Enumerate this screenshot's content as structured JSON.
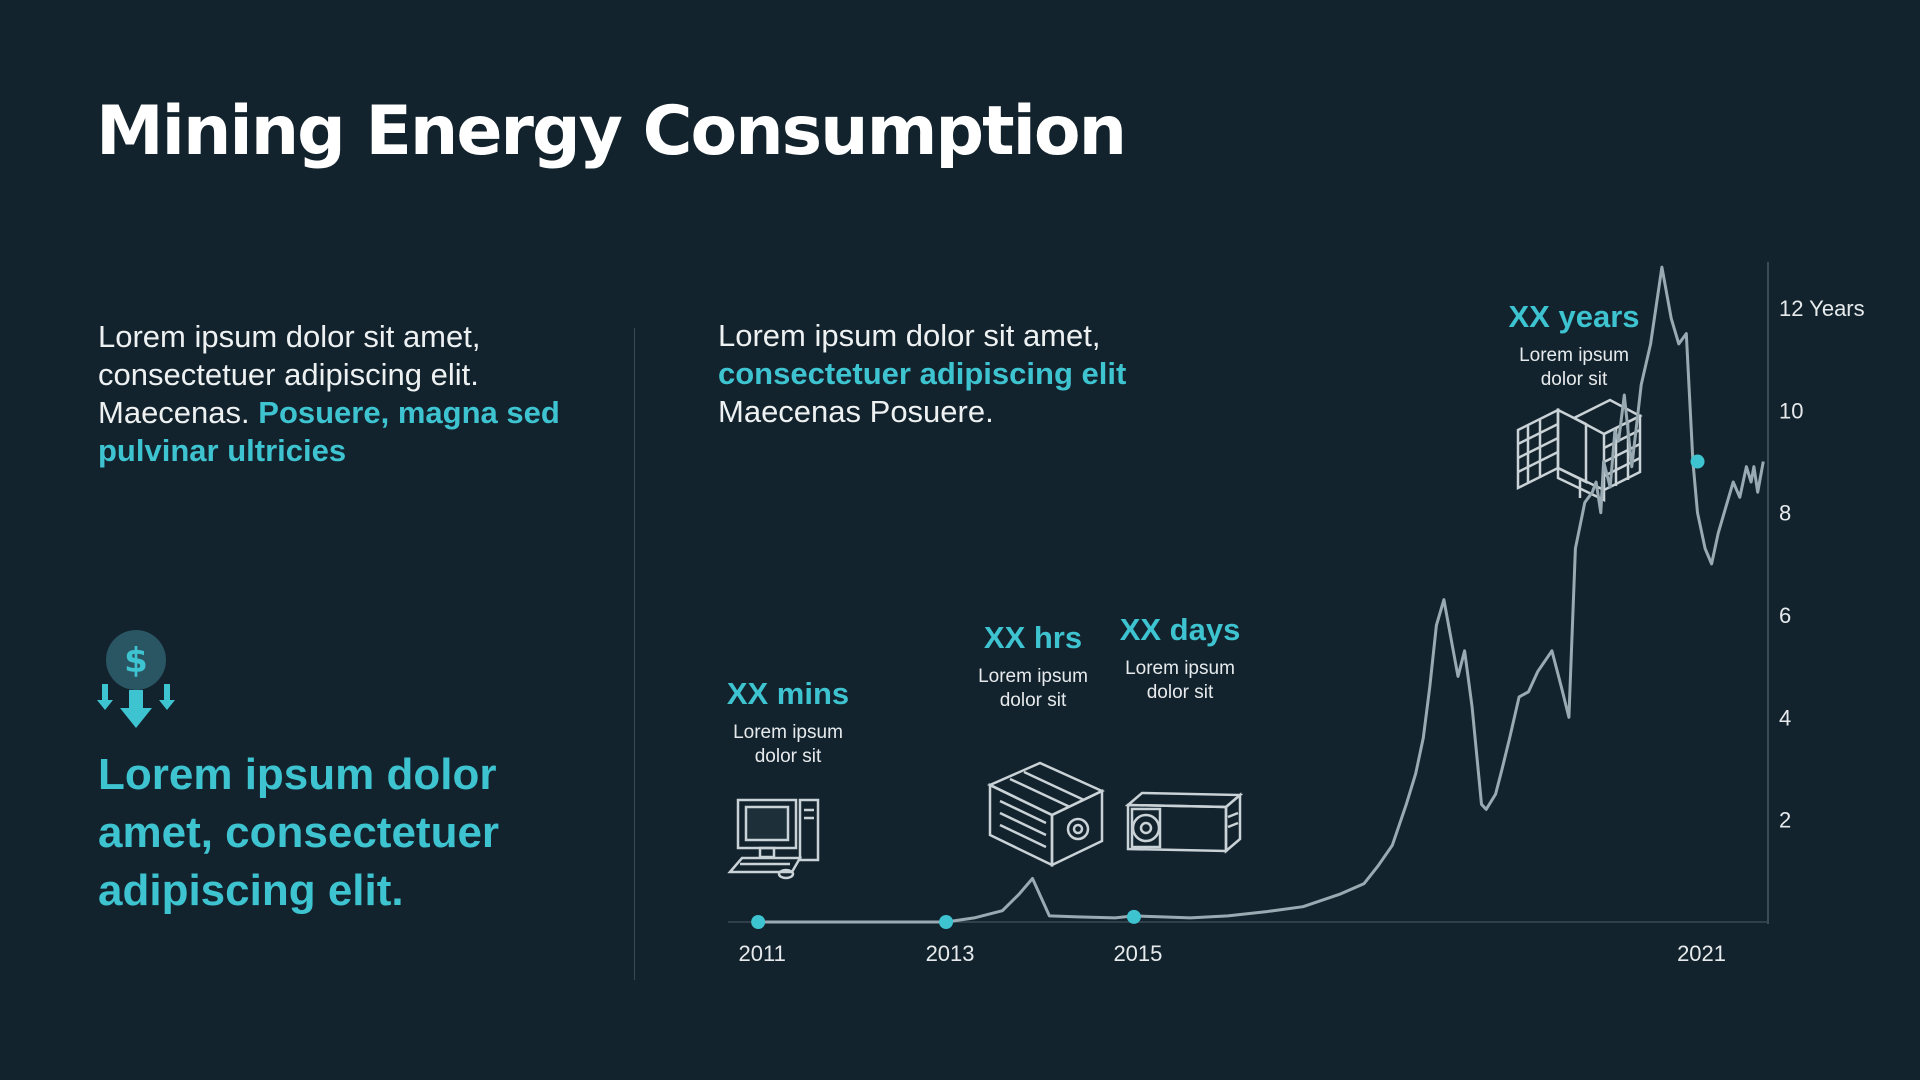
{
  "title": "Mining Energy Consumption",
  "left_text": {
    "plain": "Lorem ipsum dolor sit amet, consectetuer adipiscing elit. Maecenas. ",
    "accent": "Posuere, magna sed pulvinar ultricies"
  },
  "big_statement": "Lorem ipsum dolor amet, consectetuer adipiscing elit.",
  "middle_text": {
    "line1": "Lorem ipsum dolor sit amet,",
    "accent": "consectetuer adipiscing elit",
    "line3": "Maecenas Posuere."
  },
  "icons": {
    "money": "dollar-down-arrows-icon",
    "desktop": "desktop-computer-icon",
    "gpu_rig": "gpu-mining-rig-icon",
    "asic": "asic-miner-icon",
    "farm": "mining-farm-icon"
  },
  "colors": {
    "background": "#13232d",
    "accent": "#3ec3d0",
    "line": "#9aaab2",
    "text": "#f2f4f5"
  },
  "chart_data": {
    "type": "line",
    "title": "",
    "xlabel": "",
    "ylabel": "",
    "x_tick_labels": [
      "2011",
      "2013",
      "2015",
      "2021"
    ],
    "x_ticks": [
      2011,
      2013,
      2015,
      2021
    ],
    "xlim": [
      2010.7,
      2021.75
    ],
    "y_tick_labels": [
      "2",
      "4",
      "6",
      "8",
      "10",
      "12 Years"
    ],
    "y_ticks": [
      2,
      4,
      6,
      8,
      10,
      12
    ],
    "ylim": [
      0,
      12.9
    ],
    "grid": false,
    "series": [
      {
        "x": [
          2011.0,
          2011.5,
          2012.0,
          2012.5,
          2013.0,
          2013.3,
          2013.6,
          2013.78,
          2013.92,
          2014.1,
          2014.4,
          2014.8,
          2015.0,
          2015.3,
          2015.6,
          2016.0,
          2016.4,
          2016.8,
          2017.2,
          2017.45,
          2017.6,
          2017.75,
          2017.9,
          2018.0,
          2018.08,
          2018.15,
          2018.22,
          2018.3,
          2018.38,
          2018.45,
          2018.52,
          2018.6,
          2018.7,
          2018.75,
          2018.85,
          2018.92,
          2019.0,
          2019.1,
          2019.2,
          2019.3,
          2019.45,
          2019.55,
          2019.63,
          2019.7,
          2019.8,
          2019.88,
          2019.92,
          2019.97,
          2020.0,
          2020.07,
          2020.12,
          2020.16,
          2020.22,
          2020.3,
          2020.4,
          2020.5,
          2020.62,
          2020.72,
          2020.8,
          2020.88,
          2020.95,
          2021.0,
          2021.08,
          2021.15,
          2021.22,
          2021.3,
          2021.38,
          2021.45,
          2021.52,
          2021.57,
          2021.6,
          2021.64,
          2021.68,
          2021.7
        ],
        "y": [
          0.0,
          0.0,
          0.0,
          0.0,
          0.0,
          0.08,
          0.22,
          0.55,
          0.85,
          0.12,
          0.1,
          0.08,
          0.12,
          0.1,
          0.08,
          0.12,
          0.2,
          0.3,
          0.55,
          0.75,
          1.1,
          1.5,
          2.3,
          2.9,
          3.6,
          4.6,
          5.8,
          6.3,
          5.5,
          4.8,
          5.3,
          4.2,
          2.3,
          2.2,
          2.5,
          3.0,
          3.6,
          4.4,
          4.5,
          4.9,
          5.3,
          4.6,
          4.0,
          7.3,
          8.2,
          8.4,
          8.6,
          8.0,
          9.0,
          8.5,
          9.6,
          9.4,
          10.3,
          8.9,
          10.5,
          11.3,
          12.8,
          11.8,
          11.3,
          11.5,
          9.0,
          8.0,
          7.3,
          7.0,
          7.6,
          8.1,
          8.6,
          8.3,
          8.9,
          8.6,
          8.9,
          8.4,
          8.8,
          9.0
        ]
      }
    ],
    "markers": [
      {
        "x": 2011.0,
        "y": 0.0,
        "label": "XX mins",
        "sub": "Lorem ipsum dolor sit"
      },
      {
        "x": 2013.0,
        "y": 0.0,
        "label": "XX hrs",
        "sub": "Lorem ipsum dolor sit"
      },
      {
        "x": 2015.0,
        "y": 0.1,
        "label": "XX days",
        "sub": "Lorem ipsum dolor sit"
      },
      {
        "x": 2021.0,
        "y": 9.0,
        "label": "XX years",
        "sub": "Lorem ipsum dolor sit"
      }
    ]
  }
}
